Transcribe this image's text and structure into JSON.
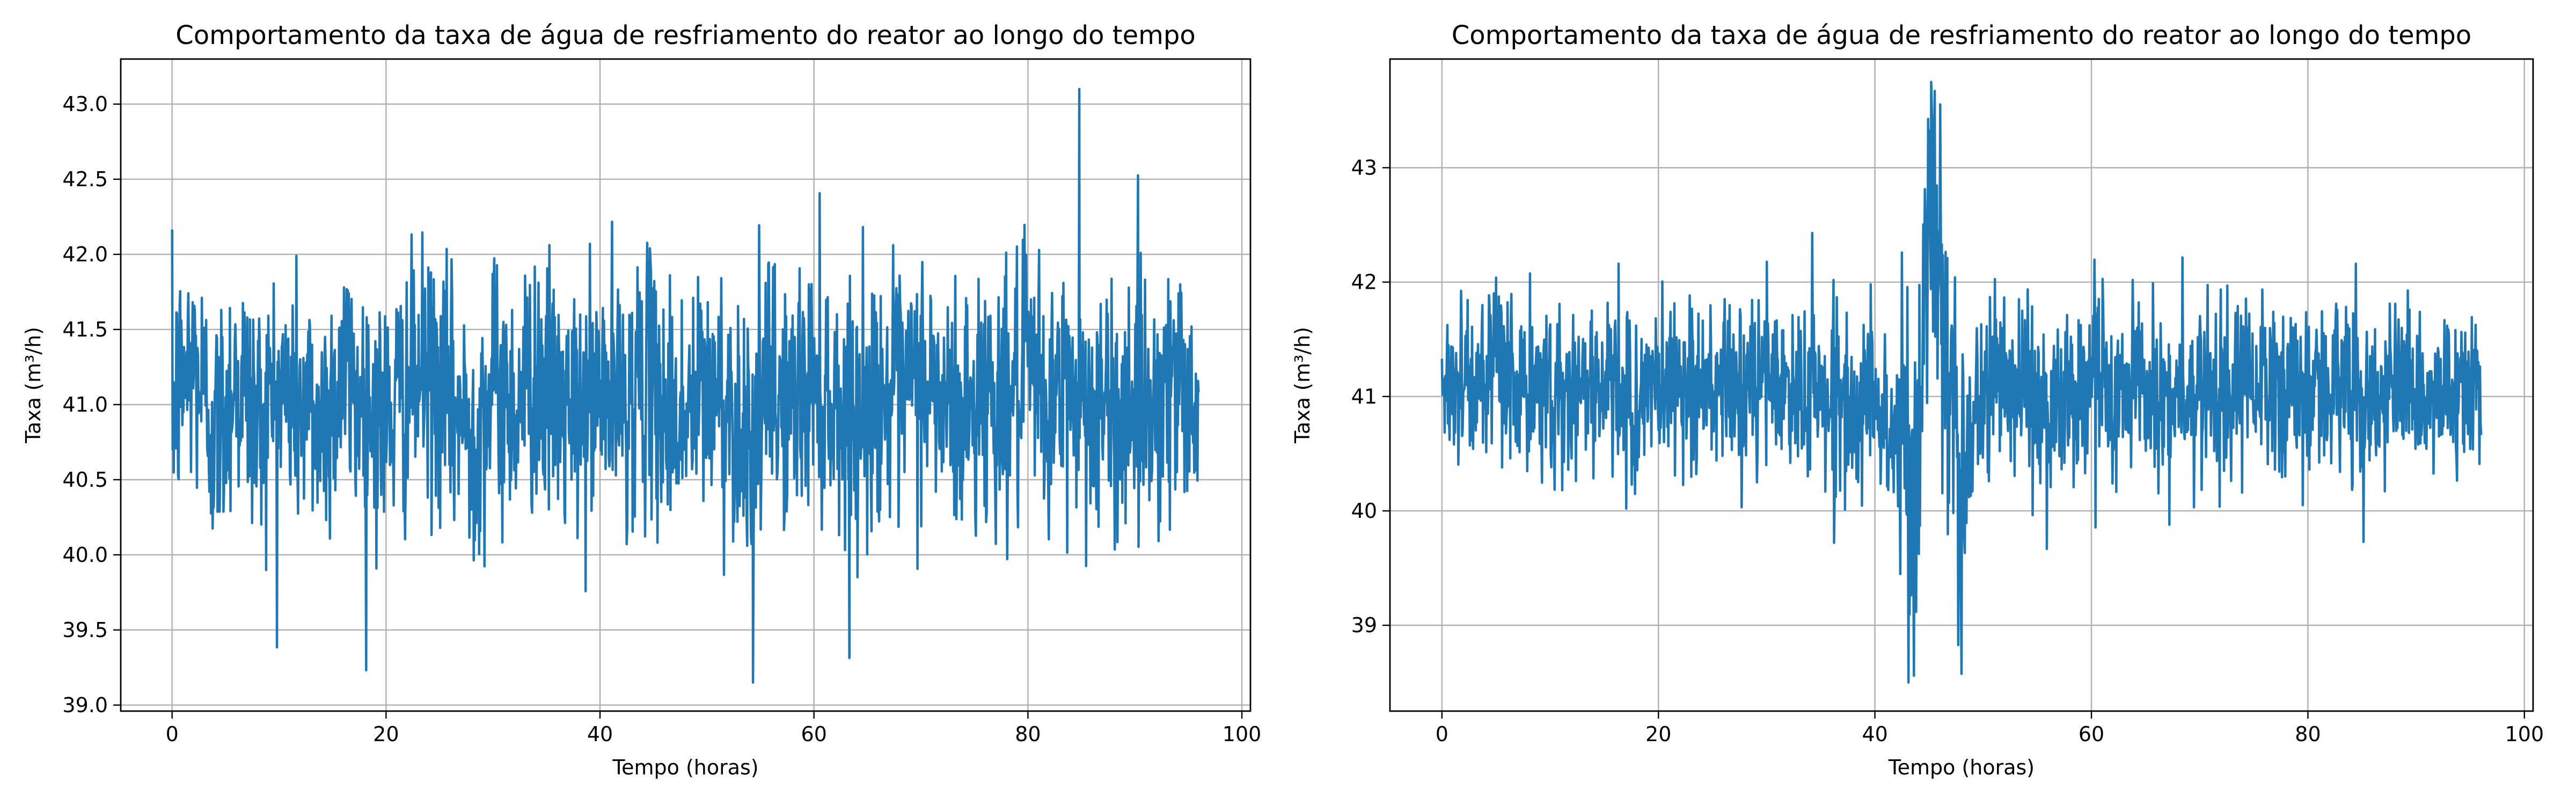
{
  "chart_data": [
    {
      "type": "line",
      "title": "Comportamento da taxa de água de resfriamento do reator ao longo do tempo",
      "xlabel": "Tempo (horas)",
      "ylabel": "Taxa (m³/h)",
      "xlim": [
        -4.8,
        100.8
      ],
      "ylim": [
        38.96,
        43.3
      ],
      "xticks": [
        0,
        20,
        40,
        60,
        80,
        100
      ],
      "xtick_labels": [
        "0",
        "20",
        "40",
        "60",
        "80",
        "100"
      ],
      "yticks": [
        39.0,
        39.5,
        40.0,
        40.5,
        41.0,
        41.5,
        42.0,
        42.5,
        43.0
      ],
      "ytick_labels": [
        "39.0",
        "39.5",
        "40.0",
        "40.5",
        "41.0",
        "41.5",
        "42.0",
        "42.5",
        "43.0"
      ],
      "grid": true,
      "legend": "none",
      "line_color": "#1f77b4",
      "series": [
        {
          "x": [
            0,
            2,
            4,
            6,
            8,
            10,
            12,
            14,
            16,
            18,
            20,
            22,
            24,
            26,
            28,
            30,
            32,
            34,
            36,
            38,
            40,
            42,
            44,
            46,
            48,
            50,
            52,
            54,
            56,
            58,
            60,
            62,
            64,
            66,
            68,
            70,
            72,
            74,
            76,
            78,
            80,
            82,
            84,
            86,
            88,
            90,
            92,
            94,
            96
          ],
          "y": [
            41.0,
            41.3,
            40.8,
            41.2,
            40.9,
            41.1,
            41.0,
            40.9,
            41.2,
            41.0,
            40.9,
            41.1,
            41.2,
            41.0,
            40.8,
            41.1,
            41.0,
            41.2,
            41.0,
            40.9,
            41.1,
            41.0,
            41.2,
            41.0,
            40.9,
            41.1,
            41.0,
            40.8,
            41.1,
            41.0,
            41.2,
            41.0,
            40.9,
            41.1,
            41.0,
            41.2,
            41.0,
            40.9,
            41.1,
            41.0,
            41.2,
            41.0,
            41.1,
            41.0,
            40.9,
            41.1,
            41.0,
            41.2,
            41.0
          ],
          "y_min_observed": 39.15,
          "y_max_observed": 43.1,
          "spike_max_at_x": 84.8
        }
      ]
    },
    {
      "type": "line",
      "title": "Comportamento da taxa de água de resfriamento do reator ao longo do tempo",
      "xlabel": "Tempo (horas)",
      "ylabel": "Taxa (m³/h)",
      "xlim": [
        -4.8,
        100.8
      ],
      "ylim": [
        38.25,
        43.95
      ],
      "xticks": [
        0,
        20,
        40,
        60,
        80,
        100
      ],
      "xtick_labels": [
        "0",
        "20",
        "40",
        "60",
        "80",
        "100"
      ],
      "yticks": [
        39,
        40,
        41,
        42,
        43
      ],
      "ytick_labels": [
        "39",
        "40",
        "41",
        "42",
        "43"
      ],
      "grid": true,
      "legend": "none",
      "line_color": "#1f77b4",
      "series": [
        {
          "x": [
            0,
            2,
            4,
            6,
            8,
            10,
            12,
            14,
            16,
            18,
            20,
            22,
            24,
            26,
            28,
            30,
            32,
            34,
            36,
            38,
            40,
            42,
            43,
            44,
            45,
            46,
            48,
            50,
            52,
            54,
            56,
            58,
            60,
            62,
            64,
            66,
            68,
            70,
            72,
            74,
            76,
            78,
            80,
            82,
            84,
            86,
            88,
            90,
            92,
            94,
            96
          ],
          "y": [
            41.1,
            41.2,
            41.0,
            41.3,
            40.9,
            41.1,
            41.0,
            41.2,
            41.0,
            40.9,
            41.1,
            41.2,
            41.0,
            41.1,
            41.0,
            41.2,
            41.0,
            41.1,
            41.0,
            40.9,
            41.0,
            40.6,
            40.2,
            40.6,
            42.6,
            41.8,
            40.3,
            41.0,
            41.3,
            41.0,
            40.8,
            41.1,
            41.2,
            41.0,
            41.1,
            41.0,
            40.9,
            41.1,
            41.0,
            41.2,
            41.0,
            40.9,
            41.1,
            41.0,
            41.2,
            41.0,
            41.1,
            41.0,
            40.9,
            41.1,
            41.0
          ],
          "y_min_observed": 38.5,
          "y_max_observed": 43.75,
          "disturbance_window_hours": [
            42,
            52
          ]
        }
      ]
    }
  ]
}
